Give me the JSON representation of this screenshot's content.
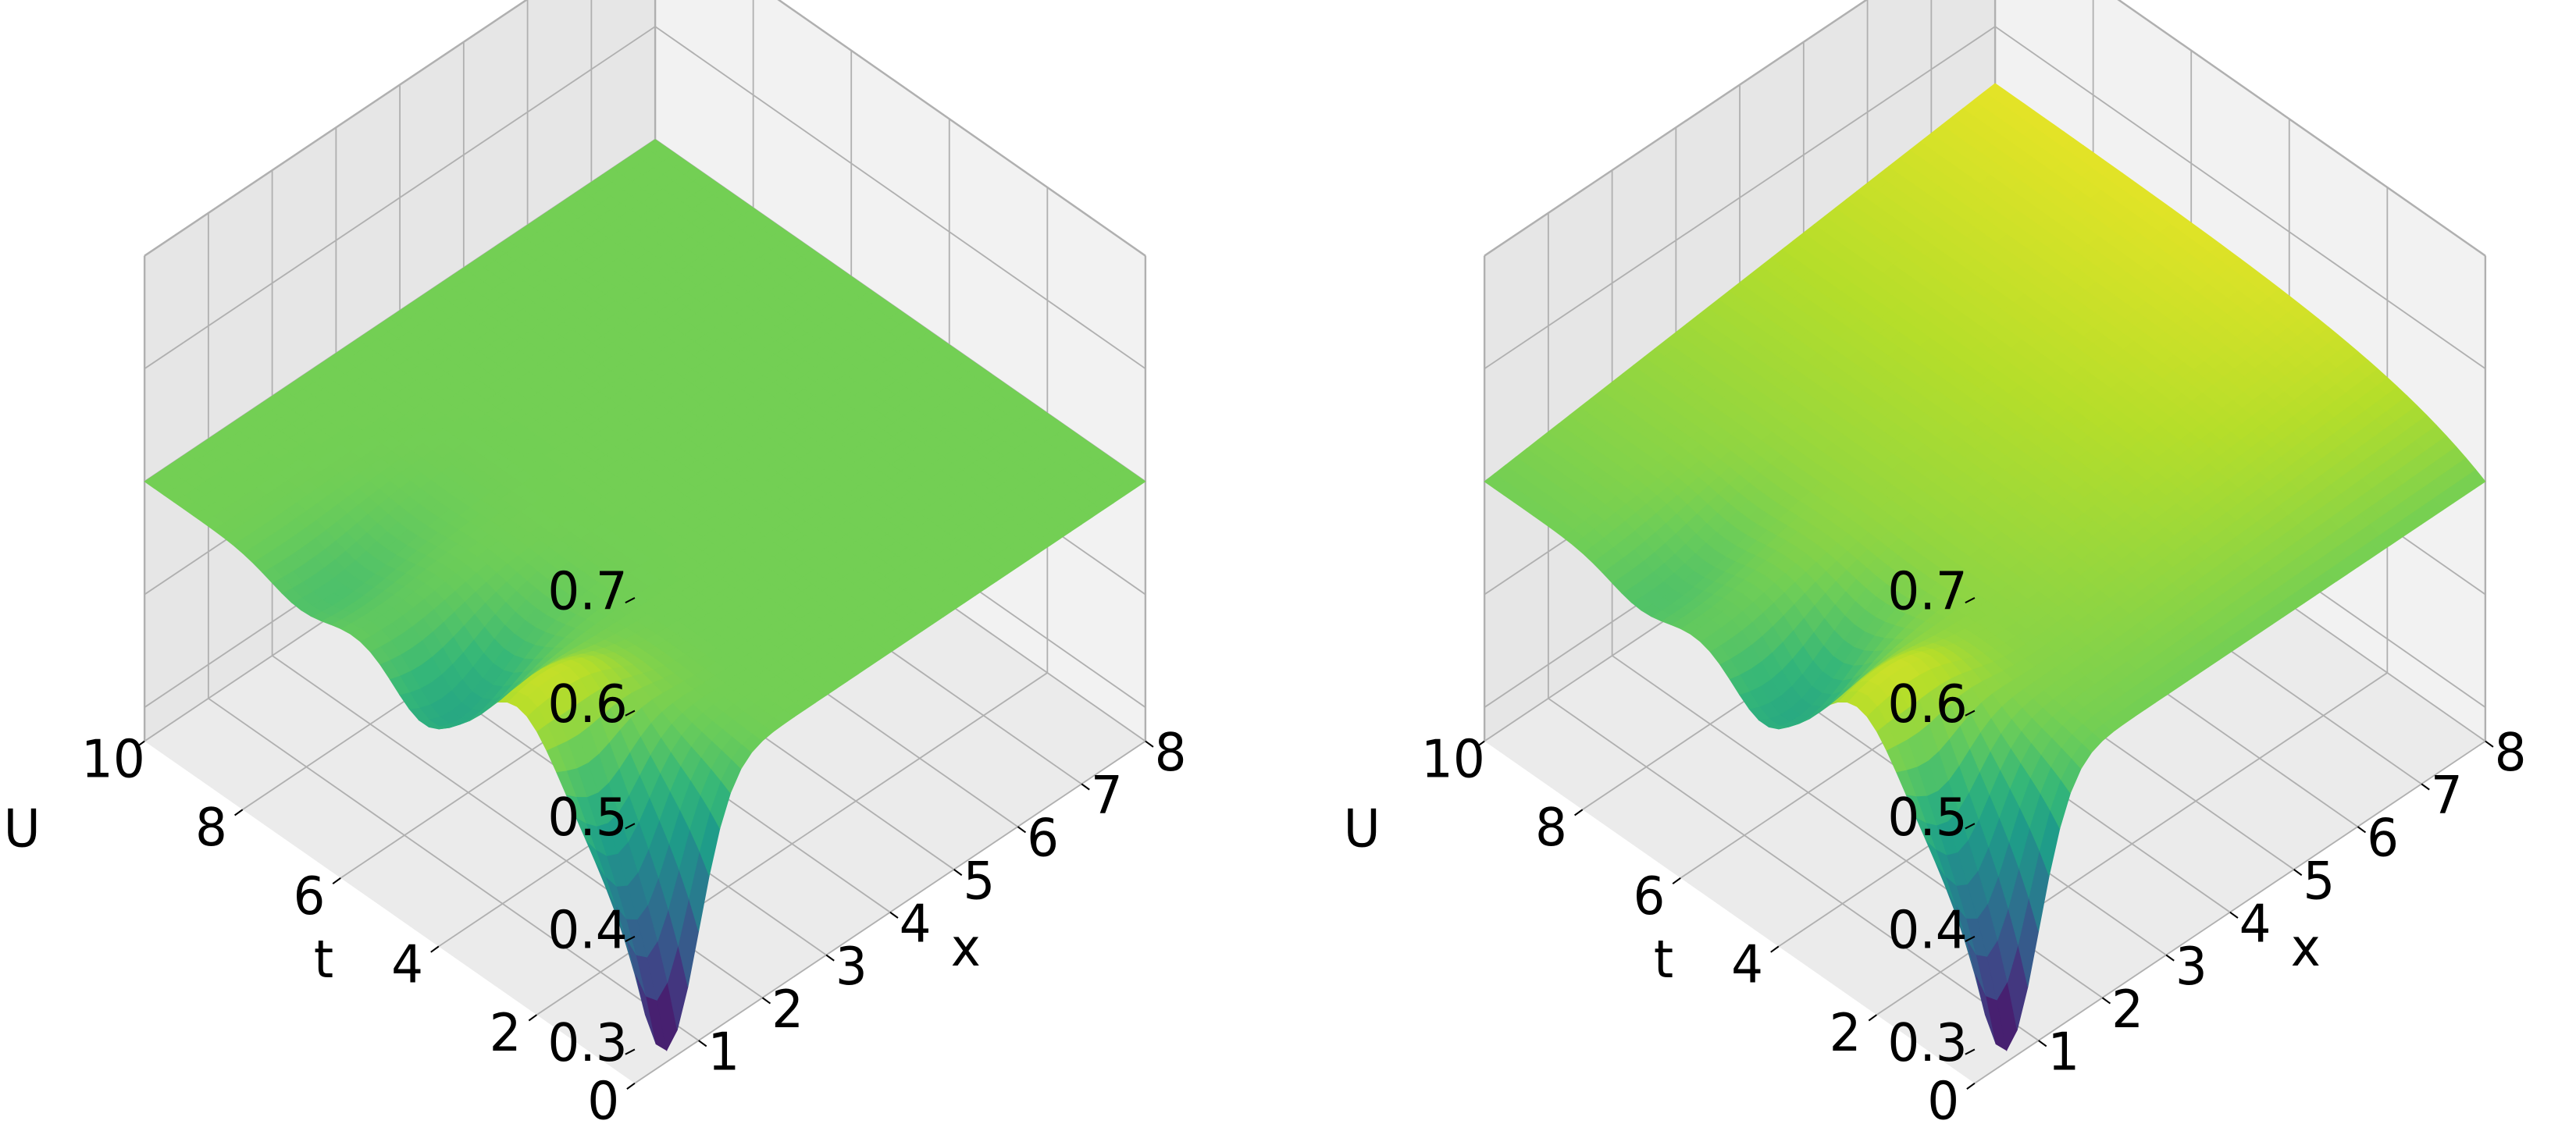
{
  "figure": {
    "colormap": "viridis",
    "pane_colors": {
      "back_left": "#e6e6e6",
      "back_right": "#f2f2f2",
      "floor": "#ebebeb",
      "grid": "#b0b0b0"
    }
  },
  "chart_data": [
    {
      "type": "surface",
      "title": "",
      "xlabel": "x",
      "ylabel": "t",
      "zlabel": "U",
      "xlim": [
        0,
        8
      ],
      "ylim": [
        0,
        10
      ],
      "zlim": [
        0.27,
        0.7
      ],
      "x_ticks": [
        "1",
        "2",
        "3",
        "4",
        "5",
        "6",
        "7",
        "8"
      ],
      "y_ticks": [
        "0",
        "2",
        "4",
        "6",
        "8",
        "10"
      ],
      "z_ticks": [
        "0.3",
        "0.4",
        "0.5",
        "0.6",
        "0.7"
      ],
      "x_tick_values": [
        1,
        2,
        3,
        4,
        5,
        6,
        7,
        8
      ],
      "y_tick_values": [
        0,
        2,
        4,
        6,
        8,
        10
      ],
      "z_tick_values": [
        0.3,
        0.4,
        0.5,
        0.6,
        0.7
      ],
      "view": {
        "elev": 30,
        "azim": -135
      },
      "surface": {
        "baseline": 0.5,
        "feature_x": 0.5,
        "min_at_t0": 0.28,
        "peak_value": 0.56,
        "secondary_dip": 0.45,
        "far_edge_value": 0.5
      }
    },
    {
      "type": "surface",
      "title": "",
      "xlabel": "x",
      "ylabel": "t",
      "zlabel": "U",
      "xlim": [
        0,
        8
      ],
      "ylim": [
        0,
        10
      ],
      "zlim": [
        0.27,
        0.7
      ],
      "x_ticks": [
        "1",
        "2",
        "3",
        "4",
        "5",
        "6",
        "7",
        "8"
      ],
      "y_ticks": [
        "0",
        "2",
        "4",
        "6",
        "8",
        "10"
      ],
      "z_ticks": [
        "0.3",
        "0.4",
        "0.5",
        "0.6",
        "0.7"
      ],
      "x_tick_values": [
        1,
        2,
        3,
        4,
        5,
        6,
        7,
        8
      ],
      "y_tick_values": [
        0,
        2,
        4,
        6,
        8,
        10
      ],
      "z_tick_values": [
        0.3,
        0.4,
        0.5,
        0.6,
        0.7
      ],
      "view": {
        "elev": 30,
        "azim": -135
      },
      "surface": {
        "baseline": 0.5,
        "feature_x": 0.5,
        "min_at_t0": 0.28,
        "peak_value": 0.56,
        "secondary_dip": 0.45,
        "far_edge_value": 0.55
      }
    }
  ]
}
